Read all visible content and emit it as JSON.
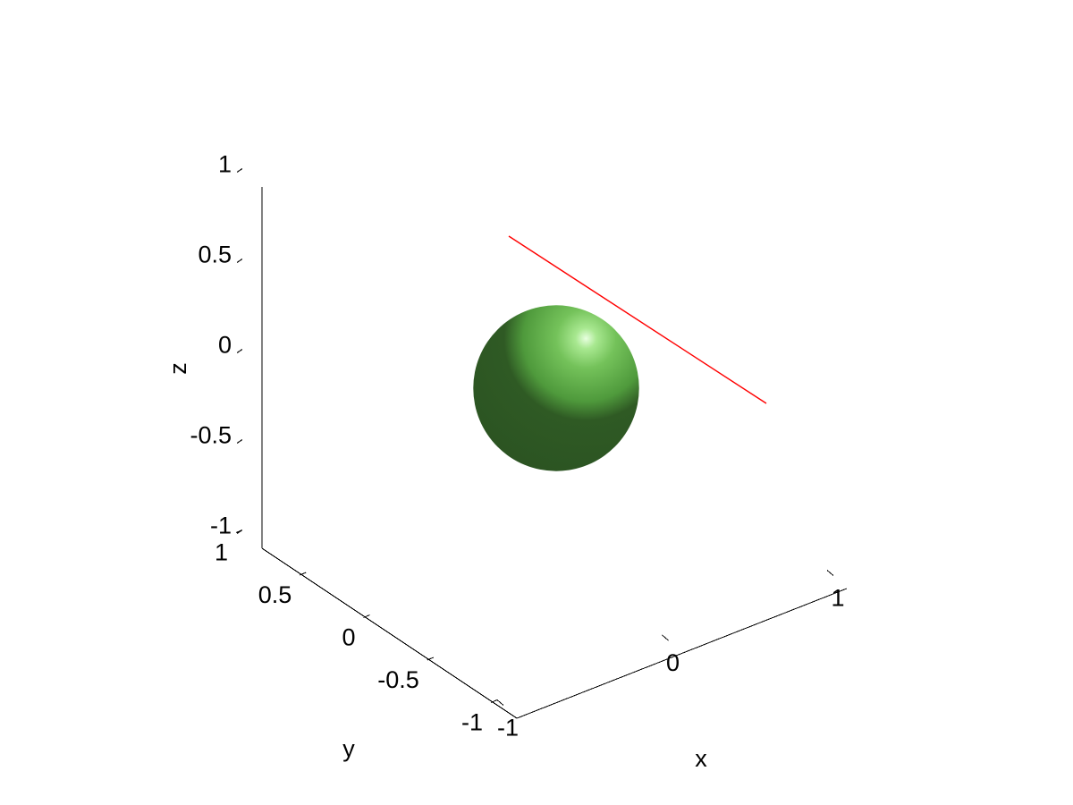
{
  "chart_data": {
    "type": "3d-surface-line",
    "title": "",
    "axes": {
      "x": {
        "label": "x",
        "range": [
          -1,
          1
        ],
        "ticks": [
          "-1",
          "0",
          "1"
        ]
      },
      "y": {
        "label": "y",
        "range": [
          -1,
          1
        ],
        "ticks": [
          "-1",
          "-0.5",
          "0",
          "0.5",
          "1"
        ]
      },
      "z": {
        "label": "z",
        "range": [
          -1,
          1
        ],
        "ticks": [
          "-1",
          "-0.5",
          "0",
          "0.5",
          "1"
        ]
      }
    },
    "grid": false,
    "box": false,
    "surfaces": [
      {
        "kind": "sphere",
        "center": [
          0.0,
          0.0,
          0.0
        ],
        "radius": 0.3,
        "color": "#4c9a3a",
        "lighting": "flat"
      }
    ],
    "lines": [
      {
        "start": [
          -0.2,
          0.8,
          0.6
        ],
        "end": [
          0.9,
          0.4,
          0.3
        ],
        "color": "#ff0000"
      }
    ]
  }
}
